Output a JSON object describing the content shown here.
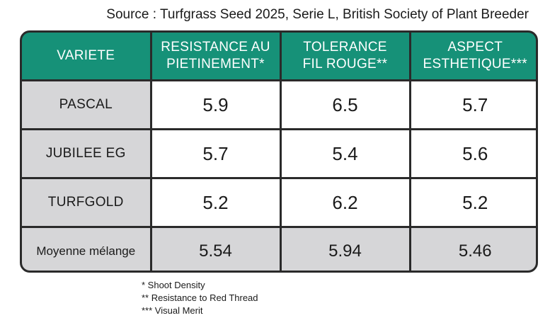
{
  "source": "Source : Turfgrass Seed 2025, Serie L, British Society of Plant Breeder",
  "table": {
    "headers": [
      [
        "VARIETE"
      ],
      [
        "RESISTANCE AU",
        "PIETINEMENT*"
      ],
      [
        "TOLERANCE",
        "FIL ROUGE**"
      ],
      [
        "ASPECT",
        "ESTHETIQUE***"
      ]
    ],
    "rows": [
      {
        "variety": "PASCAL",
        "values": [
          "5.9",
          "6.5",
          "5.7"
        ]
      },
      {
        "variety": "JUBILEE EG",
        "values": [
          "5.7",
          "5.4",
          "5.6"
        ]
      },
      {
        "variety": "TURFGOLD",
        "values": [
          "5.2",
          "6.2",
          "5.2"
        ]
      }
    ],
    "average": {
      "label": "Moyenne mélange",
      "values": [
        "5.54",
        "5.94",
        "5.46"
      ]
    }
  },
  "footnotes": [
    "* Shoot Density",
    "** Resistance to Red Thread",
    "*** Visual Merit"
  ],
  "colors": {
    "header_bg": "#169178",
    "label_bg": "#d6d6d8",
    "border": "#2a2a2a"
  }
}
